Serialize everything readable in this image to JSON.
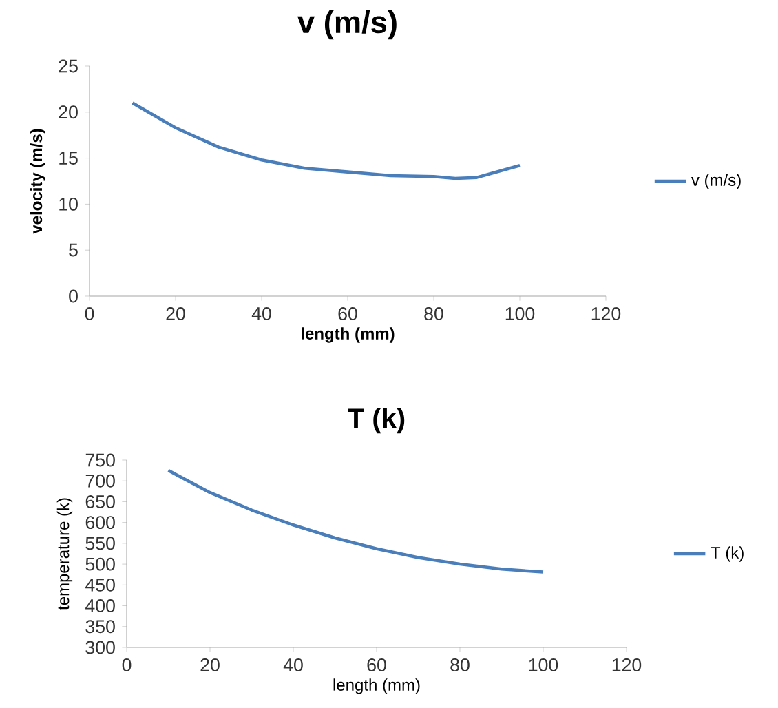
{
  "chart_data": [
    {
      "type": "line",
      "title": "v (m/s)",
      "xlabel": "length (mm)",
      "ylabel": "velocity (m/s)",
      "x": [
        10,
        20,
        30,
        40,
        50,
        60,
        70,
        80,
        85,
        90,
        100
      ],
      "series": [
        {
          "name": "v (m/s)",
          "color": "#4a7ebb",
          "values": [
            21.0,
            18.3,
            16.2,
            14.8,
            13.9,
            13.5,
            13.1,
            13.0,
            12.8,
            12.9,
            14.2
          ]
        }
      ],
      "xlim": [
        0,
        120
      ],
      "xticks": [
        0,
        20,
        40,
        60,
        80,
        100,
        120
      ],
      "ylim": [
        0,
        25
      ],
      "yticks": [
        0,
        5,
        10,
        15,
        20,
        25
      ],
      "legend": "right",
      "marker": "none",
      "line_style": "solid"
    },
    {
      "type": "line",
      "title": "T (k)",
      "xlabel": "length (mm)",
      "ylabel": "temperature (k)",
      "x": [
        10,
        20,
        30,
        40,
        50,
        60,
        70,
        80,
        90,
        100
      ],
      "series": [
        {
          "name": "T (k)",
          "color": "#4a7ebb",
          "values": [
            725,
            672,
            630,
            594,
            563,
            537,
            516,
            500,
            488,
            481
          ]
        }
      ],
      "xlim": [
        0,
        120
      ],
      "xticks": [
        0,
        20,
        40,
        60,
        80,
        100,
        120
      ],
      "ylim": [
        300,
        750
      ],
      "yticks": [
        300,
        350,
        400,
        450,
        500,
        550,
        600,
        650,
        700,
        750
      ],
      "legend": "right",
      "marker": "none",
      "line_style": "solid"
    }
  ]
}
